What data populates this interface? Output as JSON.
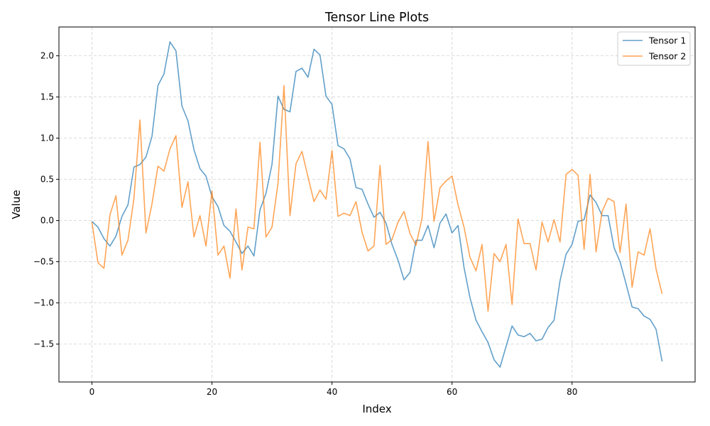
{
  "chart_data": {
    "type": "line",
    "title": "Tensor Line Plots",
    "xlabel": "Index",
    "ylabel": "Value",
    "xlim": [
      -5.5,
      100.5
    ],
    "ylim": [
      -1.96,
      2.35
    ],
    "xticks": [
      0,
      20,
      40,
      60,
      80
    ],
    "yticks": [
      -1.5,
      -1.0,
      -0.5,
      0.0,
      0.5,
      1.0,
      1.5,
      2.0
    ],
    "ytick_labels": [
      "−1.5",
      "−1.0",
      "−0.5",
      "0.0",
      "0.5",
      "1.0",
      "1.5",
      "2.0"
    ],
    "grid": true,
    "legend": "top-right",
    "series": [
      {
        "name": "Tensor 1",
        "color": "#1f77b4",
        "values": [
          -0.01,
          -0.08,
          -0.22,
          -0.31,
          -0.19,
          0.05,
          0.19,
          0.65,
          0.68,
          0.77,
          1.02,
          1.64,
          1.78,
          2.17,
          2.06,
          1.39,
          1.21,
          0.86,
          0.63,
          0.54,
          0.29,
          0.17,
          -0.06,
          -0.13,
          -0.26,
          -0.4,
          -0.31,
          -0.43,
          0.13,
          0.33,
          0.68,
          1.51,
          1.35,
          1.32,
          1.81,
          1.85,
          1.74,
          2.08,
          2.01,
          1.51,
          1.41,
          0.91,
          0.87,
          0.75,
          0.4,
          0.38,
          0.2,
          0.04,
          0.1,
          -0.03,
          -0.29,
          -0.48,
          -0.72,
          -0.63,
          -0.24,
          -0.24,
          -0.06,
          -0.33,
          -0.03,
          0.08,
          -0.15,
          -0.06,
          -0.57,
          -0.94,
          -1.21,
          -1.35,
          -1.48,
          -1.69,
          -1.78,
          -1.53,
          -1.28,
          -1.39,
          -1.41,
          -1.37,
          -1.46,
          -1.44,
          -1.3,
          -1.21,
          -0.73,
          -0.41,
          -0.29,
          -0.01,
          0.01,
          0.31,
          0.22,
          0.06,
          0.06,
          -0.33,
          -0.5,
          -0.77,
          -1.05,
          -1.07,
          -1.16,
          -1.2,
          -1.32,
          -1.71
        ]
      },
      {
        "name": "Tensor 2",
        "color": "#ff7f0e",
        "values": [
          -0.02,
          -0.51,
          -0.58,
          0.07,
          0.3,
          -0.42,
          -0.24,
          0.27,
          1.22,
          -0.15,
          0.2,
          0.66,
          0.6,
          0.87,
          1.03,
          0.16,
          0.47,
          -0.2,
          0.06,
          -0.31,
          0.36,
          -0.42,
          -0.31,
          -0.7,
          0.14,
          -0.6,
          -0.08,
          -0.1,
          0.95,
          -0.2,
          -0.08,
          0.45,
          1.64,
          0.06,
          0.69,
          0.84,
          0.53,
          0.23,
          0.37,
          0.26,
          0.85,
          0.05,
          0.09,
          0.06,
          0.23,
          -0.14,
          -0.37,
          -0.31,
          0.67,
          -0.29,
          -0.23,
          -0.02,
          0.11,
          -0.16,
          -0.3,
          0.03,
          0.96,
          -0.01,
          0.4,
          0.48,
          0.54,
          0.19,
          -0.08,
          -0.45,
          -0.61,
          -0.29,
          -1.1,
          -0.4,
          -0.5,
          -0.29,
          -1.02,
          0.02,
          -0.28,
          -0.28,
          -0.6,
          -0.02,
          -0.26,
          0.01,
          -0.26,
          0.56,
          0.62,
          0.55,
          -0.35,
          0.56,
          -0.38,
          0.11,
          0.27,
          0.23,
          -0.39,
          0.2,
          -0.81,
          -0.38,
          -0.42,
          -0.1,
          -0.59,
          -0.89
        ]
      }
    ]
  }
}
